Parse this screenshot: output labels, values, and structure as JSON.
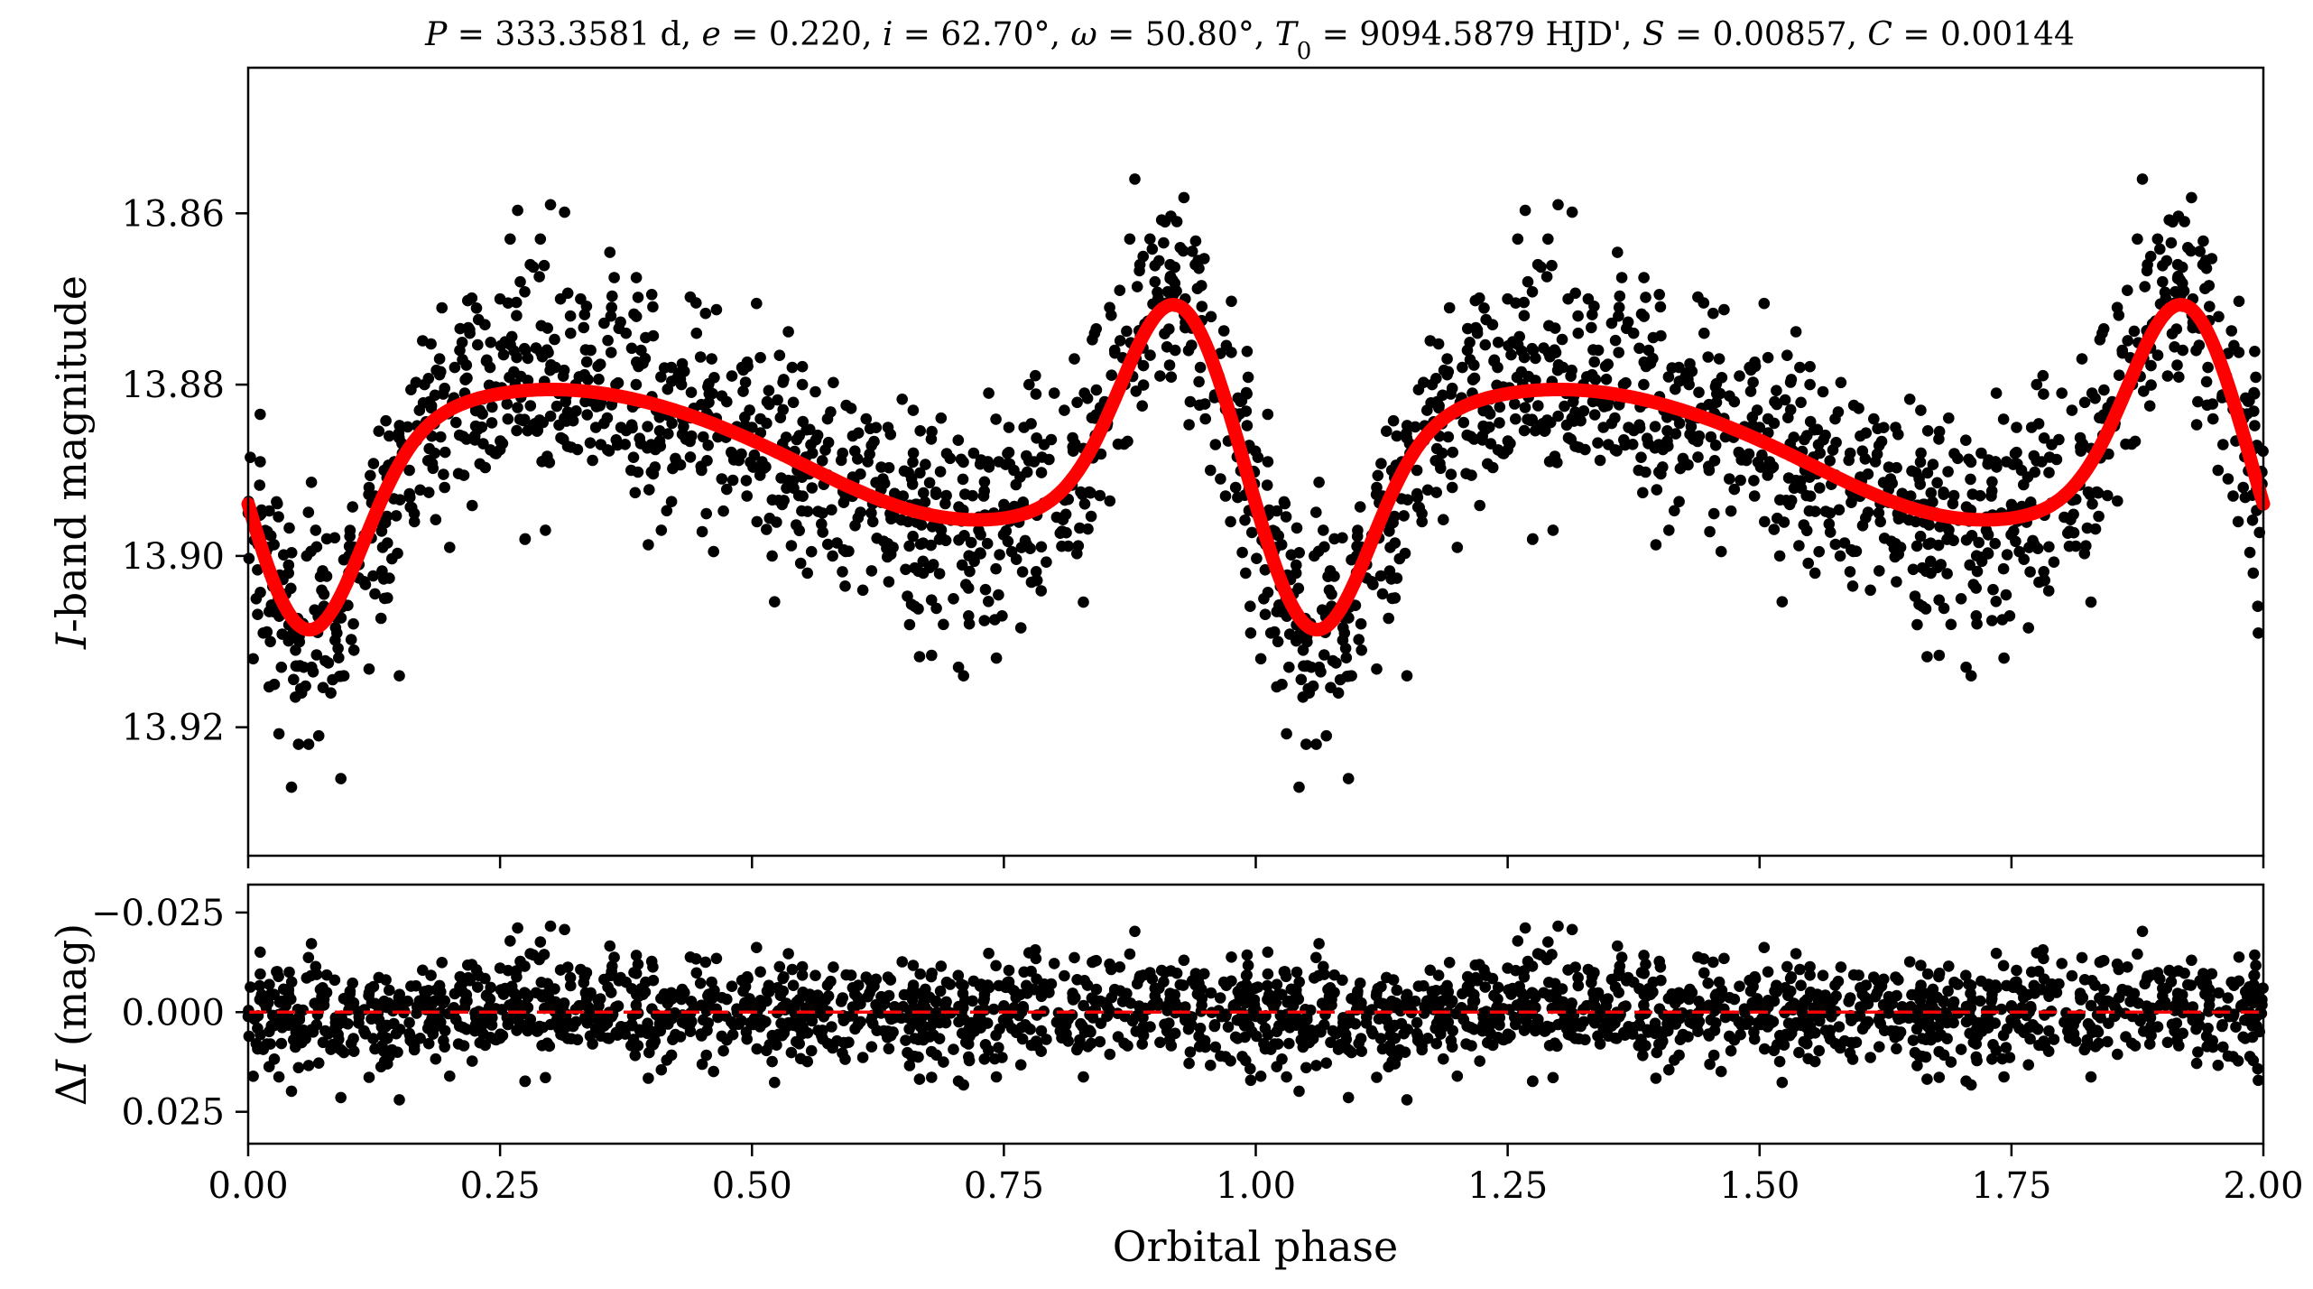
{
  "figure": {
    "title": "P = 333.3581 d, e = 0.220, i = 62.70°, ω = 50.80°, T0 = 9094.5879 HJD', S = 0.00857, C = 0.00144",
    "title_parts": {
      "P_sym": "P",
      "P_val": " = 333.3581 d, ",
      "e_sym": "e",
      "e_val": " = 0.220, ",
      "i_sym": "i",
      "i_val": " = 62.70°, ",
      "w_sym": "ω",
      "w_val": " = 50.80°, ",
      "T_sym": "T",
      "T_sub": "0",
      "T_val": " = 9094.5879 HJD', ",
      "S_sym": "S",
      "S_val": " = 0.00857, ",
      "C_sym": "C",
      "C_val": " = 0.00144"
    },
    "colors": {
      "points": "#000000",
      "model": "#ff0000",
      "zero_line": "#ff0000",
      "axes": "#000000"
    }
  },
  "chart_data": [
    {
      "type": "scatter",
      "panel": "top",
      "ylabel": "I-band magnitude",
      "ylabel_parts": {
        "italic": "I",
        "rest": "-band magnitude"
      },
      "xlim": [
        0.0,
        2.0
      ],
      "ylim": [
        13.935,
        13.843
      ],
      "y_inverted": true,
      "yticks": [
        "13.86",
        "13.88",
        "13.90",
        "13.92"
      ],
      "series": [
        {
          "kind": "scatter",
          "points_phase_0_to_1": [
            [
              0.0,
              13.895
            ],
            [
              0.005,
              13.912
            ],
            [
              0.008,
              13.905
            ],
            [
              0.012,
              13.889
            ],
            [
              0.015,
              13.909
            ],
            [
              0.02,
              13.899
            ],
            [
              0.022,
              13.91
            ],
            [
              0.026,
              13.915
            ],
            [
              0.03,
              13.905
            ],
            [
              0.033,
              13.913
            ],
            [
              0.04,
              13.902
            ],
            [
              0.043,
              13.927
            ],
            [
              0.047,
              13.911
            ],
            [
              0.05,
              13.922
            ],
            [
              0.053,
              13.916
            ],
            [
              0.058,
              13.9
            ],
            [
              0.06,
              13.922
            ],
            [
              0.063,
              13.913
            ],
            [
              0.067,
              13.897
            ],
            [
              0.07,
              13.921
            ],
            [
              0.073,
              13.904
            ],
            [
              0.078,
              13.898
            ],
            [
              0.082,
              13.916
            ],
            [
              0.088,
              13.909
            ],
            [
              0.092,
              13.926
            ],
            [
              0.095,
              13.914
            ],
            [
              0.1,
              13.9
            ],
            [
              0.105,
              13.911
            ],
            [
              0.11,
              13.901
            ],
            [
              0.115,
              13.903
            ],
            [
              0.12,
              13.892
            ],
            [
              0.126,
              13.893
            ],
            [
              0.13,
              13.896
            ],
            [
              0.135,
              13.89
            ],
            [
              0.14,
              13.886
            ],
            [
              0.145,
              13.889
            ],
            [
              0.15,
              13.914
            ],
            [
              0.155,
              13.888
            ],
            [
              0.16,
              13.89
            ],
            [
              0.165,
              13.896
            ],
            [
              0.17,
              13.883
            ],
            [
              0.175,
              13.88
            ],
            [
              0.18,
              13.882
            ],
            [
              0.185,
              13.888
            ],
            [
              0.19,
              13.877
            ],
            [
              0.195,
              13.892
            ],
            [
              0.2,
              13.899
            ],
            [
              0.205,
              13.878
            ],
            [
              0.21,
              13.876
            ],
            [
              0.215,
              13.881
            ],
            [
              0.22,
              13.874
            ],
            [
              0.225,
              13.886
            ],
            [
              0.23,
              13.883
            ],
            [
              0.235,
              13.873
            ],
            [
              0.24,
              13.878
            ],
            [
              0.245,
              13.888
            ],
            [
              0.25,
              13.87
            ],
            [
              0.255,
              13.875
            ],
            [
              0.26,
              13.863
            ],
            [
              0.265,
              13.88
            ],
            [
              0.27,
              13.868
            ],
            [
              0.275,
              13.898
            ],
            [
              0.28,
              13.866
            ],
            [
              0.285,
              13.885
            ],
            [
              0.29,
              13.863
            ],
            [
              0.295,
              13.897
            ],
            [
              0.3,
              13.859
            ],
            [
              0.305,
              13.878
            ],
            [
              0.31,
              13.87
            ],
            [
              0.315,
              13.882
            ],
            [
              0.32,
              13.874
            ],
            [
              0.325,
              13.88
            ],
            [
              0.33,
              13.87
            ],
            [
              0.34,
              13.876
            ],
            [
              0.345,
              13.885
            ],
            [
              0.35,
              13.887
            ],
            [
              0.36,
              13.872
            ],
            [
              0.365,
              13.88
            ],
            [
              0.37,
              13.885
            ],
            [
              0.375,
              13.874
            ],
            [
              0.38,
              13.89
            ],
            [
              0.385,
              13.88
            ],
            [
              0.39,
              13.876
            ],
            [
              0.4,
              13.887
            ],
            [
              0.405,
              13.883
            ],
            [
              0.41,
              13.897
            ],
            [
              0.42,
              13.878
            ],
            [
              0.425,
              13.889
            ],
            [
              0.43,
              13.88
            ],
            [
              0.44,
              13.886
            ],
            [
              0.445,
              13.874
            ],
            [
              0.45,
              13.89
            ],
            [
              0.455,
              13.884
            ],
            [
              0.46,
              13.877
            ],
            [
              0.47,
              13.891
            ],
            [
              0.475,
              13.882
            ],
            [
              0.48,
              13.888
            ],
            [
              0.49,
              13.878
            ],
            [
              0.495,
              13.893
            ],
            [
              0.5,
              13.885
            ],
            [
              0.505,
              13.896
            ],
            [
              0.51,
              13.889
            ],
            [
              0.515,
              13.882
            ],
            [
              0.52,
              13.9
            ],
            [
              0.525,
              13.888
            ],
            [
              0.53,
              13.894
            ],
            [
              0.54,
              13.878
            ],
            [
              0.545,
              13.89
            ],
            [
              0.55,
              13.88
            ],
            [
              0.555,
              13.902
            ],
            [
              0.56,
              13.888
            ],
            [
              0.57,
              13.895
            ],
            [
              0.575,
              13.884
            ],
            [
              0.58,
              13.9
            ],
            [
              0.59,
              13.888
            ],
            [
              0.595,
              13.893
            ],
            [
              0.6,
              13.886
            ],
            [
              0.61,
              13.904
            ],
            [
              0.615,
              13.889
            ],
            [
              0.62,
              13.896
            ],
            [
              0.63,
              13.891
            ],
            [
              0.635,
              13.885
            ],
            [
              0.64,
              13.899
            ],
            [
              0.65,
              13.893
            ],
            [
              0.655,
              13.896
            ],
            [
              0.66,
              13.883
            ],
            [
              0.67,
              13.902
            ],
            [
              0.675,
              13.895
            ],
            [
              0.68,
              13.901
            ],
            [
              0.69,
              13.908
            ],
            [
              0.7,
              13.905
            ],
            [
              0.705,
              13.913
            ],
            [
              0.71,
              13.914
            ],
            [
              0.715,
              13.907
            ],
            [
              0.72,
              13.888
            ],
            [
              0.725,
              13.897
            ],
            [
              0.73,
              13.893
            ],
            [
              0.735,
              13.881
            ],
            [
              0.74,
              13.895
            ],
            [
              0.745,
              13.889
            ],
            [
              0.75,
              13.894
            ],
            [
              0.755,
              13.885
            ],
            [
              0.76,
              13.89
            ],
            [
              0.77,
              13.885
            ],
            [
              0.775,
              13.88
            ],
            [
              0.78,
              13.889
            ],
            [
              0.79,
              13.887
            ],
            [
              0.8,
              13.881
            ],
            [
              0.81,
              13.883
            ],
            [
              0.82,
              13.877
            ],
            [
              0.83,
              13.881
            ],
            [
              0.84,
              13.874
            ],
            [
              0.85,
              13.882
            ],
            [
              0.855,
              13.871
            ],
            [
              0.86,
              13.876
            ],
            [
              0.865,
              13.869
            ],
            [
              0.87,
              13.88
            ],
            [
              0.875,
              13.863
            ],
            [
              0.88,
              13.856
            ],
            [
              0.885,
              13.866
            ],
            [
              0.89,
              13.873
            ],
            [
              0.895,
              13.863
            ],
            [
              0.9,
              13.868
            ],
            [
              0.905,
              13.879
            ],
            [
              0.91,
              13.861
            ],
            [
              0.915,
              13.866
            ],
            [
              0.92,
              13.876
            ],
            [
              0.925,
              13.864
            ],
            [
              0.93,
              13.87
            ],
            [
              0.935,
              13.882
            ],
            [
              0.94,
              13.866
            ],
            [
              0.945,
              13.878
            ],
            [
              0.95,
              13.884
            ],
            [
              0.955,
              13.89
            ],
            [
              0.96,
              13.887
            ],
            [
              0.965,
              13.891
            ],
            [
              0.97,
              13.893
            ],
            [
              0.975,
              13.896
            ],
            [
              0.98,
              13.892
            ],
            [
              0.99,
              13.902
            ],
            [
              0.995,
              13.909
            ]
          ]
        },
        {
          "kind": "line",
          "name": "",
          "model": {
            "period_days": 333.3581,
            "e": 0.22,
            "omega_deg": 50.8,
            "periastron_phase": 0.0
          }
        }
      ]
    },
    {
      "type": "scatter",
      "panel": "bottom",
      "xlabel": "Orbital phase",
      "ylabel": "ΔI (mag)",
      "ylabel_parts": {
        "delta": "Δ",
        "italic": "I",
        "rest": " (mag)"
      },
      "xlim": [
        0.0,
        2.0
      ],
      "ylim": [
        0.033,
        -0.032
      ],
      "y_inverted": true,
      "xticks": [
        "0.00",
        "0.25",
        "0.50",
        "0.75",
        "1.00",
        "1.25",
        "1.50",
        "1.75",
        "2.00"
      ],
      "yticks": [
        "−0.025",
        "0.000",
        "0.025"
      ],
      "zero_line": 0.0,
      "residual_sigma": 0.00857
    }
  ]
}
